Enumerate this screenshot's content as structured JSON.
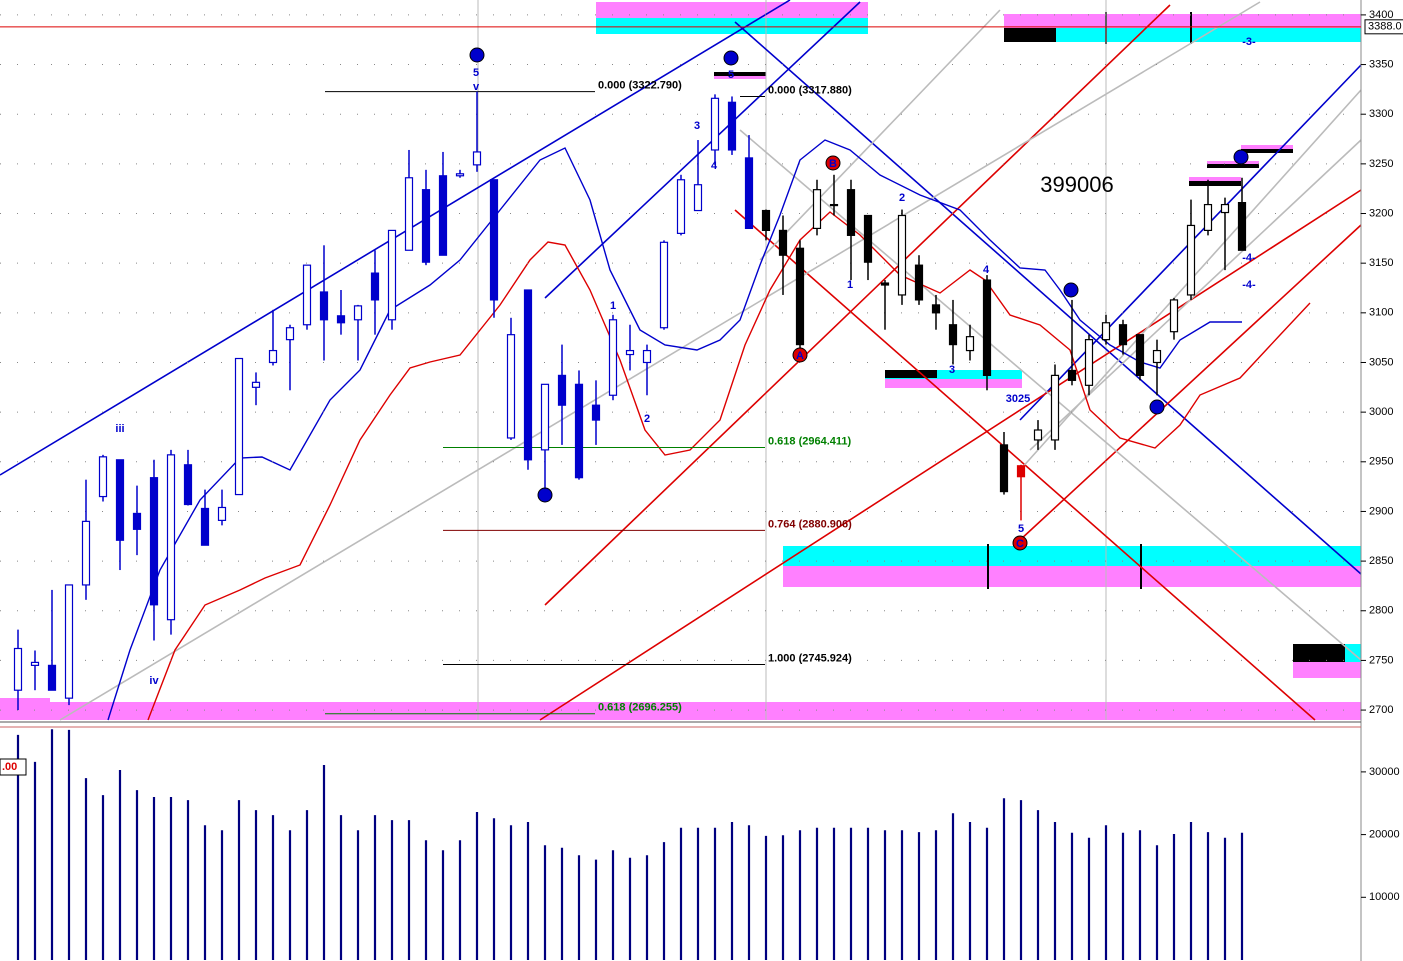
{
  "chart_data": {
    "type": "candlestick",
    "title": "399006",
    "open": [
      2720,
      2745,
      2745,
      2712,
      2826,
      2915,
      2952,
      2898,
      2934,
      2791,
      2947,
      2903,
      2891,
      2917,
      3025,
      3050,
      3073,
      3088,
      3121,
      3097,
      3093,
      3140,
      3093,
      3163,
      3224,
      3238,
      3238,
      3249,
      3234,
      2974,
      3123,
      2962,
      3037,
      3028,
      3007,
      3017,
      3058,
      3050,
      3085,
      3180,
      3203,
      3264,
      3312,
      3256,
      3203,
      3183,
      3165,
      3185,
      3209,
      3224,
      3198,
      3130,
      3118,
      3148,
      3108,
      3088,
      3062,
      3133,
      2967,
      2946,
      2972,
      2972,
      3042,
      3027,
      3073,
      3088,
      3078,
      3050,
      3081,
      3118,
      3183,
      3201,
      3211
    ],
    "high": [
      2781,
      2760,
      2821,
      2826,
      2932,
      2957,
      2952,
      2926,
      2952,
      2962,
      2962,
      2922,
      2922,
      3054,
      3040,
      3103,
      3088,
      3148,
      3168,
      3123,
      3108,
      3163,
      3183,
      3264,
      3244,
      3262,
      3244,
      3322.79,
      3234,
      3095,
      3123,
      3028,
      3068,
      3042,
      3032,
      3098,
      3088,
      3068,
      3173,
      3239,
      3274,
      3320,
      3317.88,
      3279,
      3204,
      3198,
      3173,
      3234,
      3239,
      3234,
      3198,
      3133,
      3204,
      3158,
      3118,
      3113,
      3088,
      3138,
      2980,
      2947,
      2992,
      3048,
      3113,
      3078,
      3098,
      3093,
      3078,
      3073,
      3115,
      3214,
      3234,
      3216,
      3236
    ],
    "low": [
      2700,
      2720,
      2720,
      2705,
      2811,
      2910,
      2841,
      2856,
      2770,
      2776,
      2906,
      2866,
      2886,
      2917,
      3007,
      3047,
      3022,
      3083,
      3052,
      3078,
      3052,
      3078,
      3083,
      3163,
      3148,
      3158,
      3236,
      3242,
      3095,
      2972,
      2942,
      2922,
      2967,
      2932,
      2967,
      3012,
      3042,
      3017,
      3083,
      3178,
      3203,
      3249,
      3259,
      3185,
      3173,
      3118,
      3063,
      3178,
      3198,
      3133,
      3133,
      3083,
      3108,
      3108,
      3083,
      3048,
      3052,
      3022,
      2917,
      2891,
      2962,
      2962,
      3027,
      3017,
      3068,
      3058,
      3032,
      3017,
      3073,
      3113,
      3178,
      3143,
      3163
    ],
    "close": [
      2762,
      2748,
      2720,
      2826,
      2890,
      2955,
      2871,
      2882,
      2806,
      2957,
      2907,
      2866,
      2904,
      3054,
      3030,
      3062,
      3085,
      3148,
      3093,
      3090,
      3107,
      3113,
      3183,
      3236,
      3151,
      3158,
      3240,
      3262,
      3113,
      3078,
      2952,
      3028,
      3007,
      2934,
      2992,
      3093,
      3062,
      3062,
      3171,
      3234,
      3229,
      3316,
      3264,
      3185,
      3183,
      3158,
      3068,
      3224,
      3209,
      3178,
      3151,
      3128,
      3198,
      3113,
      3100,
      3068,
      3076,
      3037,
      2920,
      2935,
      2982,
      3037,
      3032,
      3073,
      3090,
      3068,
      3037,
      3062,
      3113,
      3188,
      3209,
      3209,
      3163
    ],
    "colors": [
      "#0000cc",
      "#0000cc",
      "#0000cc",
      "#0000cc",
      "#0000cc",
      "#0000cc",
      "#0000cc",
      "#0000cc",
      "#0000cc",
      "#0000cc",
      "#0000cc",
      "#0000cc",
      "#0000cc",
      "#0000cc",
      "#0000cc",
      "#0000cc",
      "#0000cc",
      "#0000cc",
      "#0000cc",
      "#0000cc",
      "#0000cc",
      "#0000cc",
      "#0000cc",
      "#0000cc",
      "#0000cc",
      "#0000cc",
      "#0000cc",
      "#0000cc",
      "#0000cc",
      "#0000cc",
      "#0000cc",
      "#0000cc",
      "#0000cc",
      "#0000cc",
      "#0000cc",
      "#0000cc",
      "#0000cc",
      "#0000cc",
      "#0000cc",
      "#0000cc",
      "#0000cc",
      "#0000cc",
      "#0000cc",
      "#0000cc",
      "#000000",
      "#000000",
      "#000000",
      "#000000",
      "#000000",
      "#000000",
      "#000000",
      "#000000",
      "#000000",
      "#000000",
      "#000000",
      "#000000",
      "#000000",
      "#000000",
      "#000000",
      "#dd0000",
      "#000000",
      "#000000",
      "#000000",
      "#000000",
      "#000000",
      "#000000",
      "#000000",
      "#000000",
      "#000000",
      "#000000",
      "#000000",
      "#000000",
      "#000000"
    ],
    "volume": [
      35900,
      31600,
      36800,
      36700,
      29000,
      26300,
      30300,
      27100,
      26000,
      26000,
      25500,
      21500,
      20700,
      25500,
      23900,
      23100,
      20700,
      23900,
      31100,
      23100,
      20700,
      23100,
      22300,
      22300,
      19100,
      17500,
      19100,
      23600,
      22600,
      21500,
      22000,
      18300,
      17900,
      16700,
      16000,
      17500,
      16300,
      16700,
      18800,
      21100,
      21100,
      21100,
      22000,
      21500,
      19800,
      19900,
      20700,
      21100,
      21100,
      21100,
      21100,
      20700,
      20700,
      20400,
      20700,
      23400,
      22000,
      21100,
      25800,
      25500,
      23900,
      22000,
      20300,
      19500,
      21500,
      20300,
      20700,
      18300,
      20100,
      22000,
      20400,
      19500,
      20300
    ],
    "volume_color": "#000080",
    "ylim": [
      2690,
      3415
    ],
    "yticks": [
      3400,
      3350,
      3300,
      3250,
      3200,
      3150,
      3100,
      3050,
      3000,
      2950,
      2900,
      2850,
      2800,
      2750,
      2700
    ],
    "volume_ylim": [
      0,
      37000
    ],
    "volume_yticks": [
      10000,
      20000,
      30000
    ],
    "grid": true,
    "last_price": {
      "value": 3388,
      "label": "3388.0"
    },
    "fib_levels": [
      {
        "value": 3322.79,
        "label": "0.000 (3322.790)",
        "color": "#000000"
      },
      {
        "value": 3317.88,
        "label": "0.000 (3317.880)",
        "color": "#000000"
      },
      {
        "value": 2964.411,
        "label": "0.618 (2964.411)",
        "color": "#008000"
      },
      {
        "value": 2880.906,
        "label": "0.764 (2880.906)",
        "color": "#800000"
      },
      {
        "value": 2745.924,
        "label": "1.000 (2745.924)",
        "color": "#000000"
      },
      {
        "value": 2696.255,
        "label": "0.618 (2696.255)",
        "color": "#008000"
      }
    ],
    "wave_labels": [
      "3",
      "5",
      "v",
      "5",
      "5",
      "iii",
      "iv",
      "4",
      "1",
      "2",
      "3",
      "4",
      "A",
      "B",
      "1",
      "2",
      "3",
      "4",
      "3025",
      "5",
      "C",
      "1",
      "2",
      "3",
      "-4-",
      "-4-",
      "-3-"
    ],
    "volume_panel_label": ".00"
  }
}
